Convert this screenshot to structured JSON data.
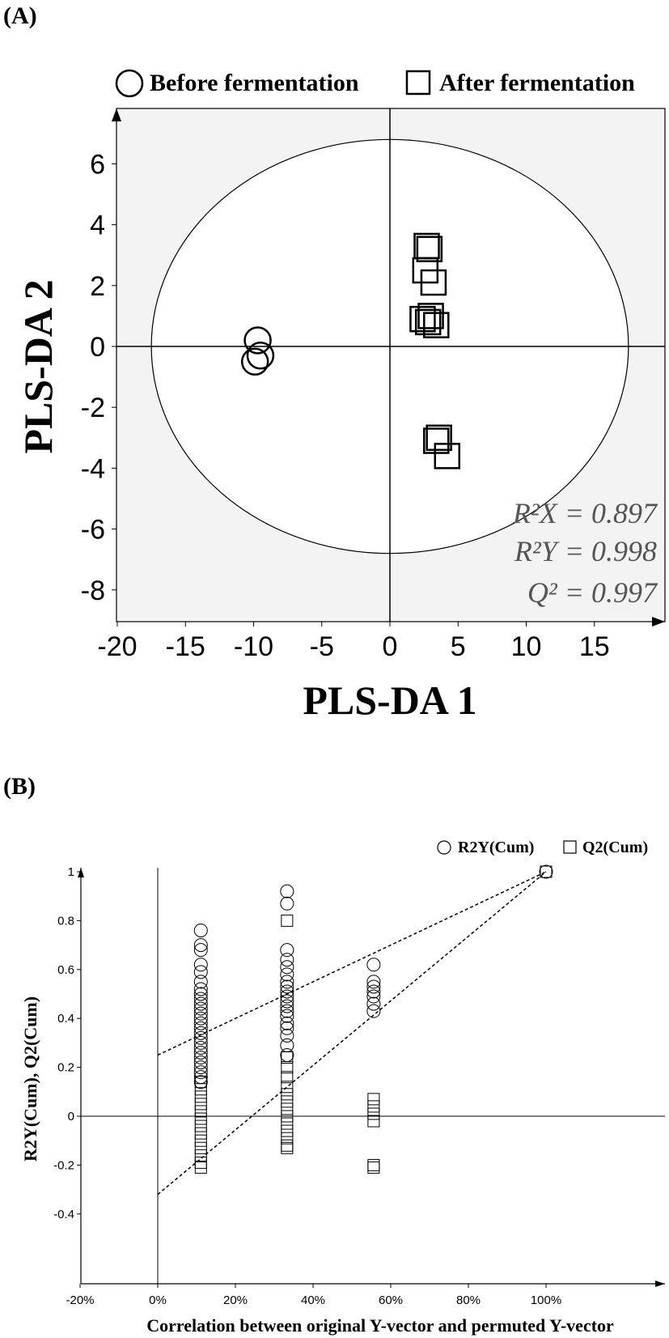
{
  "chart_data": [
    {
      "panel": "(A)",
      "type": "scatter",
      "xlabel": "PLS-DA 1",
      "ylabel": "PLS-DA 2",
      "xlim": [
        -20,
        20
      ],
      "ylim": [
        -8,
        8
      ],
      "xticks": [
        -20,
        -15,
        -10,
        -5,
        0,
        5,
        10,
        15
      ],
      "yticks": [
        -8,
        -6,
        -4,
        -2,
        0,
        2,
        4,
        6
      ],
      "legend_position": "top",
      "ellipse": {
        "rx": 17.5,
        "ry": 6.8
      },
      "series": [
        {
          "name": "Before fermentation",
          "marker": "circle",
          "points": [
            [
              -9.7,
              0.2
            ],
            [
              -9.5,
              -0.3
            ],
            [
              -9.9,
              -0.5
            ]
          ]
        },
        {
          "name": "After fermentation",
          "marker": "square",
          "points": [
            [
              2.7,
              3.3
            ],
            [
              2.9,
              3.2
            ],
            [
              2.6,
              2.5
            ],
            [
              3.2,
              2.1
            ],
            [
              2.4,
              0.9
            ],
            [
              3.0,
              1.0
            ],
            [
              2.8,
              0.8
            ],
            [
              3.4,
              0.7
            ],
            [
              3.4,
              -3.1
            ],
            [
              3.6,
              -3.0
            ],
            [
              4.2,
              -3.6
            ]
          ]
        }
      ],
      "annotations": [
        "R²X = 0.897",
        "R²Y = 0.998",
        "Q² = 0.997"
      ]
    },
    {
      "panel": "(B)",
      "type": "scatter",
      "xlabel": "Correlation between original Y-vector and permuted Y-vector",
      "ylabel": "R2Y(Cum), Q2(Cum)",
      "xlim": [
        -0.2,
        1.2
      ],
      "ylim": [
        -0.4,
        1.2
      ],
      "xticks": [
        "-20%",
        "0%",
        "20%",
        "40%",
        "60%",
        "80%",
        "100%"
      ],
      "xtick_values": [
        -0.2,
        0,
        0.2,
        0.4,
        0.6,
        0.8,
        1.0
      ],
      "yticks": [
        "-0.4",
        "-0.2",
        "0",
        "0.2",
        "0.4",
        "0.6",
        "0.8",
        "1"
      ],
      "ytick_values": [
        -0.4,
        -0.2,
        0,
        0.2,
        0.4,
        0.6,
        0.8,
        1.0
      ],
      "legend_position": "top-right",
      "series": [
        {
          "name": "R2Y(Cum)",
          "marker": "circle",
          "points": [
            [
              0.111,
              0.76
            ],
            [
              0.111,
              0.7
            ],
            [
              0.111,
              0.68
            ],
            [
              0.111,
              0.62
            ],
            [
              0.111,
              0.59
            ],
            [
              0.111,
              0.55
            ],
            [
              0.111,
              0.52
            ],
            [
              0.111,
              0.5
            ],
            [
              0.111,
              0.48
            ],
            [
              0.111,
              0.46
            ],
            [
              0.111,
              0.44
            ],
            [
              0.111,
              0.42
            ],
            [
              0.111,
              0.4
            ],
            [
              0.111,
              0.38
            ],
            [
              0.111,
              0.36
            ],
            [
              0.111,
              0.34
            ],
            [
              0.111,
              0.32
            ],
            [
              0.111,
              0.3
            ],
            [
              0.111,
              0.28
            ],
            [
              0.111,
              0.26
            ],
            [
              0.111,
              0.24
            ],
            [
              0.111,
              0.22
            ],
            [
              0.111,
              0.2
            ],
            [
              0.111,
              0.18
            ],
            [
              0.111,
              0.16
            ],
            [
              0.111,
              0.14
            ],
            [
              0.333,
              0.92
            ],
            [
              0.333,
              0.87
            ],
            [
              0.333,
              0.68
            ],
            [
              0.333,
              0.64
            ],
            [
              0.333,
              0.61
            ],
            [
              0.333,
              0.58
            ],
            [
              0.333,
              0.55
            ],
            [
              0.333,
              0.53
            ],
            [
              0.333,
              0.51
            ],
            [
              0.333,
              0.49
            ],
            [
              0.333,
              0.47
            ],
            [
              0.333,
              0.45
            ],
            [
              0.333,
              0.43
            ],
            [
              0.333,
              0.41
            ],
            [
              0.333,
              0.38
            ],
            [
              0.333,
              0.36
            ],
            [
              0.333,
              0.33
            ],
            [
              0.333,
              0.29
            ],
            [
              0.333,
              0.25
            ],
            [
              0.556,
              0.62
            ],
            [
              0.556,
              0.55
            ],
            [
              0.556,
              0.53
            ],
            [
              0.556,
              0.51
            ],
            [
              0.556,
              0.49
            ],
            [
              0.556,
              0.46
            ],
            [
              0.556,
              0.43
            ],
            [
              1.0,
              1.0
            ]
          ]
        },
        {
          "name": "Q2(Cum)",
          "marker": "square",
          "points": [
            [
              0.111,
              0.14
            ],
            [
              0.111,
              0.11
            ],
            [
              0.111,
              0.08
            ],
            [
              0.111,
              0.05
            ],
            [
              0.111,
              0.02
            ],
            [
              0.111,
              -0.01
            ],
            [
              0.111,
              -0.04
            ],
            [
              0.111,
              -0.07
            ],
            [
              0.111,
              -0.1
            ],
            [
              0.111,
              -0.13
            ],
            [
              0.111,
              -0.16
            ],
            [
              0.111,
              -0.19
            ],
            [
              0.111,
              -0.21
            ],
            [
              0.333,
              0.8
            ],
            [
              0.333,
              0.24
            ],
            [
              0.333,
              0.2
            ],
            [
              0.333,
              0.16
            ],
            [
              0.333,
              0.12
            ],
            [
              0.333,
              0.09
            ],
            [
              0.333,
              0.06
            ],
            [
              0.333,
              0.03
            ],
            [
              0.333,
              0.0
            ],
            [
              0.333,
              -0.03
            ],
            [
              0.333,
              -0.06
            ],
            [
              0.333,
              -0.09
            ],
            [
              0.333,
              -0.12
            ],
            [
              0.333,
              -0.13
            ],
            [
              0.556,
              0.07
            ],
            [
              0.556,
              0.04
            ],
            [
              0.556,
              0.01
            ],
            [
              0.556,
              -0.02
            ],
            [
              0.556,
              -0.2
            ],
            [
              0.556,
              -0.21
            ],
            [
              1.0,
              1.0
            ]
          ]
        }
      ],
      "regression_lines": [
        {
          "name": "R2Y(Cum)",
          "intercept": 0.25,
          "slope": 0.75
        },
        {
          "name": "Q2(Cum)",
          "intercept": -0.32,
          "slope": 1.32
        }
      ]
    }
  ]
}
